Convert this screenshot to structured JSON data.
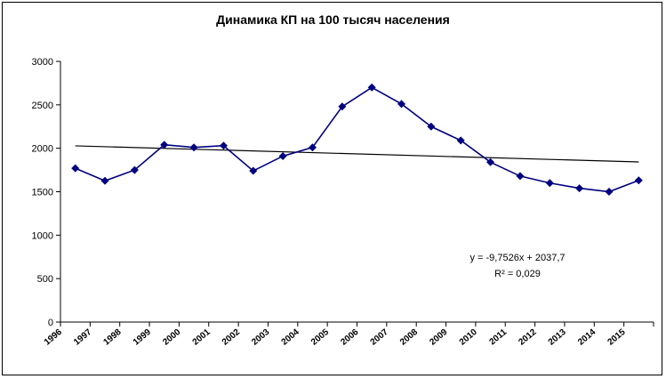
{
  "chart_data": {
    "type": "line",
    "title": "Динамика КП на 100 тысяч населения",
    "xlabel": "",
    "ylabel": "",
    "ylim": [
      0,
      3000
    ],
    "y_ticks": [
      "0",
      "500",
      "1000",
      "1500",
      "2000",
      "2500",
      "3000"
    ],
    "x_tick_labels": [
      "1996",
      "1997",
      "1998",
      "1999",
      "2000",
      "2001",
      "2002",
      "2003",
      "2004",
      "2005",
      "2006",
      "2007",
      "2008",
      "2009",
      "2010",
      "2011",
      "2012",
      "2013",
      "2014",
      "2015"
    ],
    "x": [
      1996,
      1997,
      1998,
      1999,
      2000,
      2001,
      2002,
      2003,
      2004,
      2005,
      2006,
      2007,
      2008,
      2009,
      2010,
      2011,
      2012,
      2013,
      2014,
      2015
    ],
    "series": [
      {
        "values": [
          1770,
          1625,
          1750,
          2040,
          2010,
          2030,
          1740,
          1910,
          2010,
          2480,
          2700,
          2510,
          2250,
          2090,
          1840,
          1680,
          1600,
          1540,
          1500,
          1630
        ],
        "color": "#00007f",
        "marker": "diamond"
      }
    ],
    "trendline": {
      "slope": -9.7526,
      "intercept": 2037.7,
      "color": "#000000"
    },
    "annotations": [
      "y = -9,7526x + 2037,7",
      "R² = 0,029"
    ],
    "grid": false,
    "legend": "none"
  }
}
